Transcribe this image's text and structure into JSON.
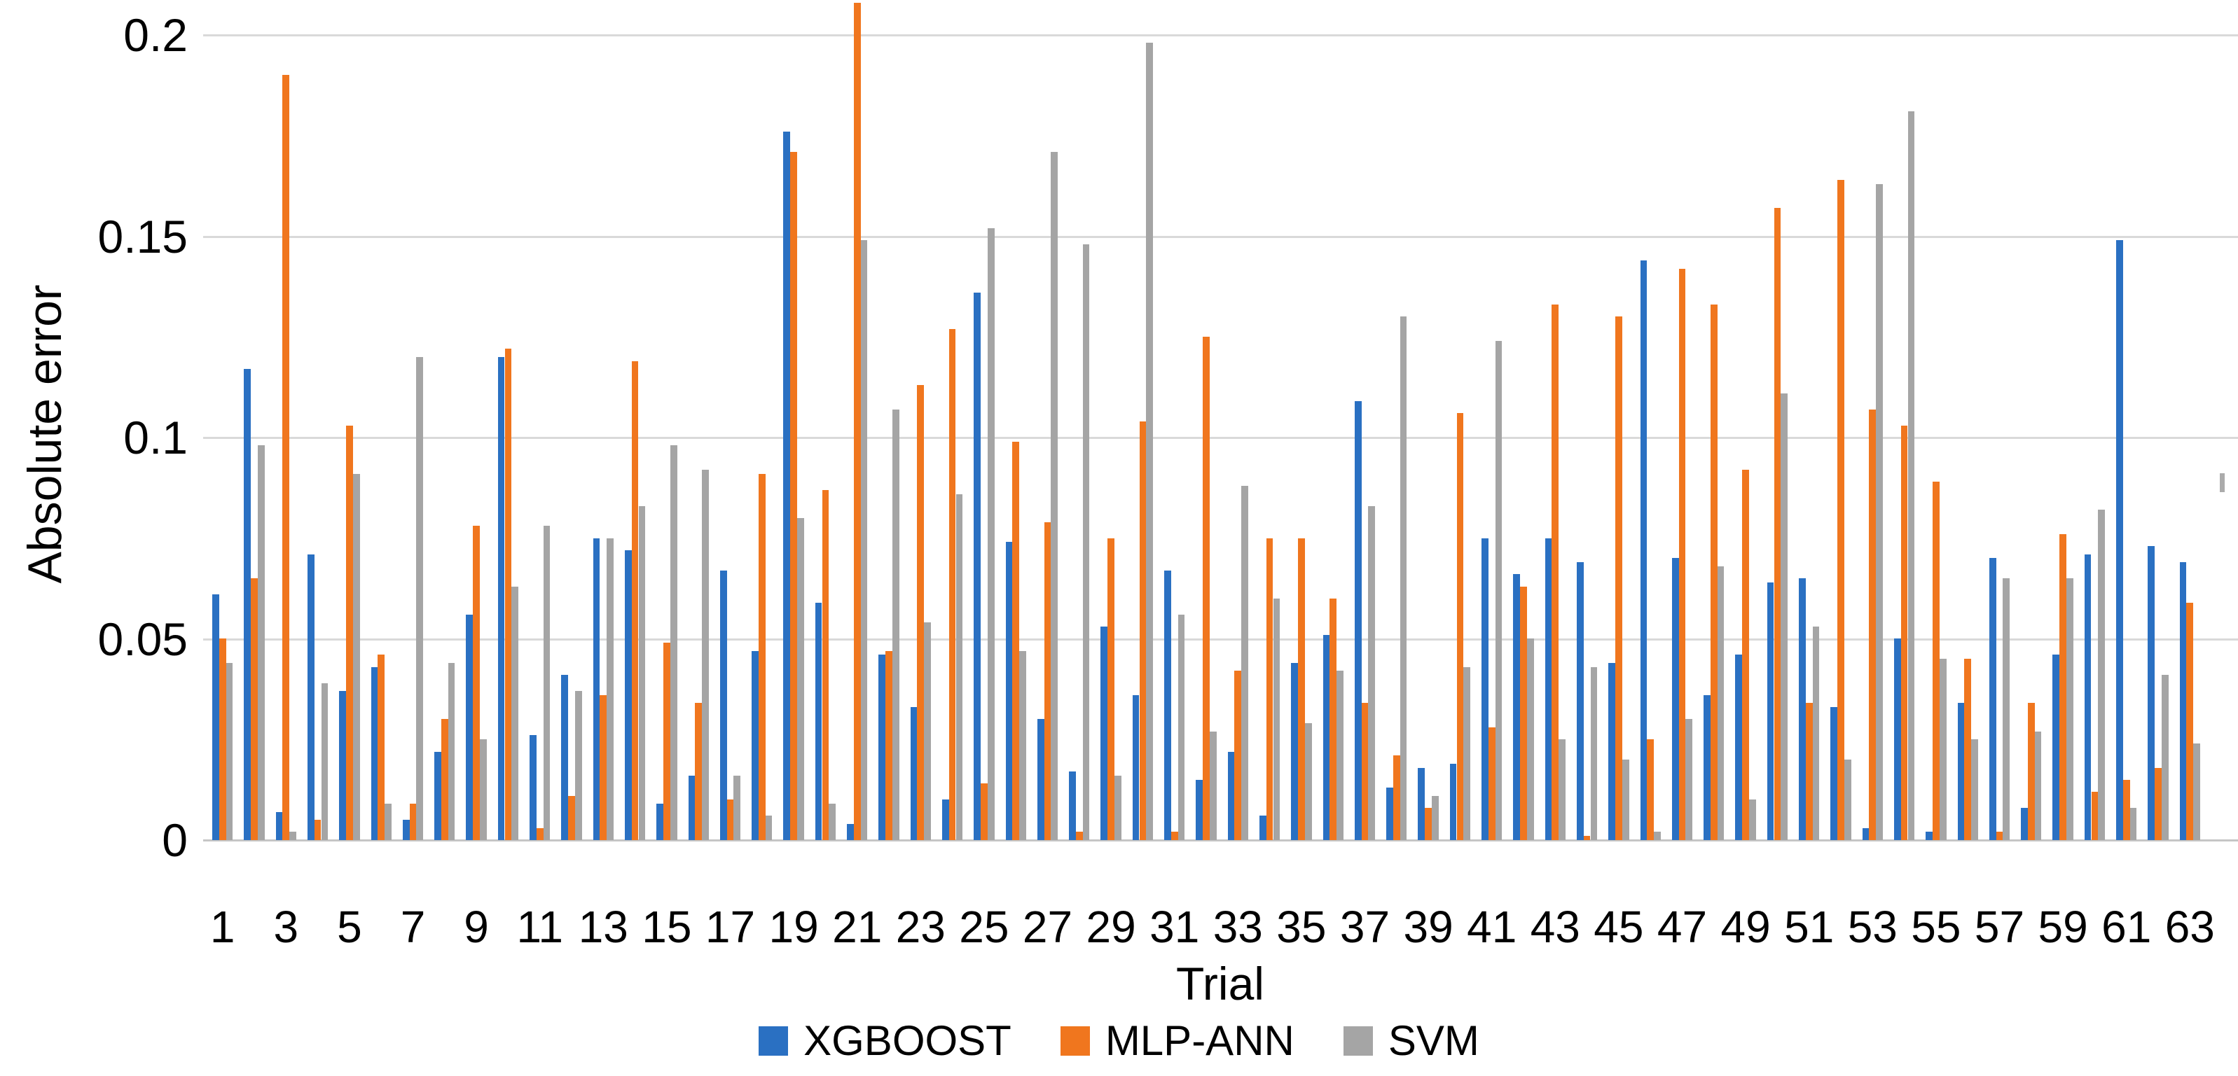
{
  "chart_data": {
    "type": "bar",
    "title": "",
    "xlabel": "Trial",
    "ylabel": "Absolute error",
    "ylim": [
      0,
      0.2
    ],
    "grid": "horizontal",
    "legend_position": "bottom-center",
    "y_ticks": [
      {
        "label": "0",
        "value": 0
      },
      {
        "label": "0.05",
        "value": 0.05
      },
      {
        "label": "0.1",
        "value": 0.1
      },
      {
        "label": "0.15",
        "value": 0.15
      },
      {
        "label": "0.2",
        "value": 0.2
      }
    ],
    "x_tick_labels_shown": [
      1,
      3,
      5,
      7,
      9,
      11,
      13,
      15,
      17,
      19,
      21,
      23,
      25,
      27,
      29,
      31,
      33,
      35,
      37,
      39,
      41,
      43,
      45,
      47,
      49,
      51,
      53,
      55,
      57,
      59,
      61,
      63
    ],
    "categories": [
      1,
      2,
      3,
      4,
      5,
      6,
      7,
      8,
      9,
      10,
      11,
      12,
      13,
      14,
      15,
      16,
      17,
      18,
      19,
      20,
      21,
      22,
      23,
      24,
      25,
      26,
      27,
      28,
      29,
      30,
      31,
      32,
      33,
      34,
      35,
      36,
      37,
      38,
      39,
      40,
      41,
      42,
      43,
      44,
      45,
      46,
      47,
      48,
      49,
      50,
      51,
      52,
      53,
      54,
      55,
      56,
      57,
      58,
      59,
      60,
      61,
      62,
      63
    ],
    "series": [
      {
        "name": "XGBOOST",
        "color": "#2a70c2",
        "values": [
          0.061,
          0.117,
          0.007,
          0.071,
          0.037,
          0.043,
          0.005,
          0.022,
          0.056,
          0.12,
          0.026,
          0.041,
          0.075,
          0.072,
          0.009,
          0.016,
          0.067,
          0.047,
          0.176,
          0.059,
          0.004,
          0.046,
          0.033,
          0.01,
          0.136,
          0.074,
          0.03,
          0.017,
          0.053,
          0.036,
          0.067,
          0.015,
          0.022,
          0.006,
          0.044,
          0.051,
          0.109,
          0.013,
          0.018,
          0.019,
          0.075,
          0.066,
          0.075,
          0.069,
          0.044,
          0.144,
          0.07,
          0.036,
          0.046,
          0.064,
          0.065,
          0.033,
          0.003,
          0.05,
          0.002,
          0.034,
          0.07,
          0.008,
          0.046,
          0.071,
          0.149,
          0.073,
          0.069
        ]
      },
      {
        "name": "MLP-ANN",
        "color": "#f0761e",
        "values": [
          0.05,
          0.065,
          0.19,
          0.005,
          0.103,
          0.046,
          0.009,
          0.03,
          0.078,
          0.122,
          0.003,
          0.011,
          0.036,
          0.119,
          0.049,
          0.034,
          0.01,
          0.091,
          0.171,
          0.087,
          0.208,
          0.047,
          0.113,
          0.127,
          0.014,
          0.099,
          0.079,
          0.002,
          0.075,
          0.104,
          0.002,
          0.125,
          0.042,
          0.075,
          0.075,
          0.06,
          0.034,
          0.021,
          0.008,
          0.106,
          0.028,
          0.063,
          0.133,
          0.001,
          0.13,
          0.025,
          0.142,
          0.133,
          0.092,
          0.157,
          0.034,
          0.164,
          0.107,
          0.103,
          0.089,
          0.045,
          0.002,
          0.034,
          0.076,
          0.012,
          0.015,
          0.018,
          0.059
        ]
      },
      {
        "name": "SVM",
        "color": "#a5a5a5",
        "values": [
          0.044,
          0.098,
          0.002,
          0.039,
          0.091,
          0.009,
          0.12,
          0.044,
          0.025,
          0.063,
          0.078,
          0.037,
          0.075,
          0.083,
          0.098,
          0.092,
          0.016,
          0.006,
          0.08,
          0.009,
          0.149,
          0.107,
          0.054,
          0.086,
          0.152,
          0.047,
          0.171,
          0.148,
          0.016,
          0.198,
          0.056,
          0.027,
          0.088,
          0.06,
          0.029,
          0.042,
          0.083,
          0.13,
          0.011,
          0.043,
          0.124,
          0.05,
          0.025,
          0.043,
          0.02,
          0.002,
          0.03,
          0.068,
          0.01,
          0.111,
          0.053,
          0.02,
          0.163,
          0.181,
          0.045,
          0.025,
          0.065,
          0.027,
          0.065,
          0.082,
          0.008,
          0.041,
          0.024
        ]
      }
    ],
    "colors": {
      "gridline": "#d9d9d9",
      "axis_line": "#c6c6c6",
      "text": "#000000",
      "background": "#ffffff",
      "stray_mark": "#ababab"
    }
  }
}
